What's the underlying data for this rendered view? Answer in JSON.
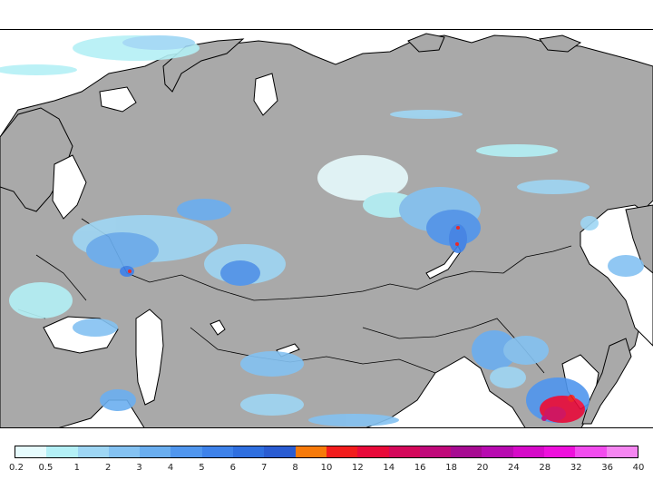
{
  "map": {
    "region": "Northern Eurasia",
    "background_color": "#ffffff",
    "land_color": "#a9a9a9",
    "border_color": "#000000"
  },
  "legend": {
    "colors": [
      "#e6fbfd",
      "#b4f0f6",
      "#9ed6f4",
      "#84c2f2",
      "#6aaef0",
      "#5096ee",
      "#3e82ea",
      "#2f6fe0",
      "#2a5cd2",
      "#f77a0a",
      "#f21d1d",
      "#e80a3a",
      "#d4085a",
      "#c0097a",
      "#a70b92",
      "#b80bb0",
      "#d60ac8",
      "#ee10dc",
      "#f24cee",
      "#f586f1"
    ],
    "ticks": [
      "0.2",
      "0.5",
      "1",
      "2",
      "3",
      "4",
      "5",
      "6",
      "7",
      "8",
      "10",
      "12",
      "14",
      "16",
      "18",
      "20",
      "24",
      "28",
      "32",
      "36",
      "40"
    ]
  }
}
